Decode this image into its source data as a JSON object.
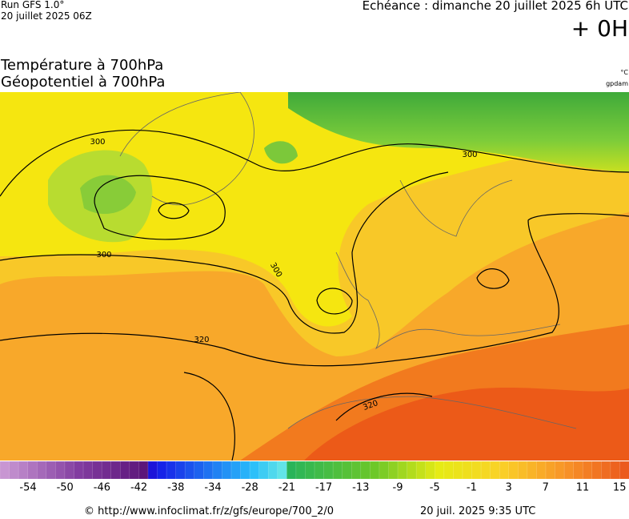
{
  "header": {
    "run": "Run GFS 1.0°",
    "run_date": "20 juillet 2025 06Z",
    "echeance": "Echéance : dimanche 20 juillet 2025 6h UTC",
    "lead": "+ 0H",
    "title_1": "Température à 700hPa",
    "title_2": "Géopotentiel à 700hPa",
    "unit_temp": "°C",
    "unit_geo": "gpdam"
  },
  "map": {
    "contour_labels": [
      300,
      300,
      300,
      300,
      320,
      320
    ]
  },
  "legend": {
    "ticks": [
      -54,
      -50,
      -46,
      -42,
      -38,
      -34,
      -28,
      -21,
      -17,
      -13,
      -9,
      -5,
      -1,
      3,
      7,
      11,
      15
    ]
  },
  "footer": {
    "source": "© http://www.infoclimat.fr/z/gfs/europe/700_2/0",
    "timestamp": "20 juil. 2025  9:35 UTC"
  }
}
